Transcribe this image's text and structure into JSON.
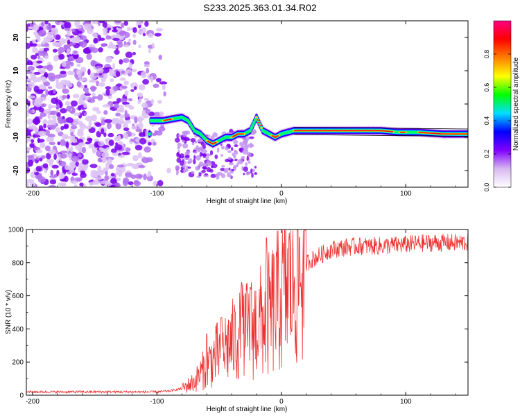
{
  "title": "S233.2025.363.01.34.R02",
  "chart_data": [
    {
      "type": "heatmap",
      "name": "spectrogram",
      "xlabel": "Height of straight line (km)",
      "ylabel": "Frequency (Hz)",
      "xlim": [
        -205,
        150
      ],
      "ylim": [
        -25,
        25
      ],
      "xticks": [
        -200,
        -100,
        0,
        100
      ],
      "yticks": [
        20,
        10,
        0,
        -10,
        -20
      ],
      "colorbar": {
        "label": "Normalized spectral amplitude",
        "range": [
          0.0,
          1.0
        ],
        "ticks": [
          "0.0",
          "0.2",
          "0.4",
          "0.6",
          "0.8"
        ],
        "colormap": [
          "#ffffff",
          "#d8b8f0",
          "#8000ff",
          "#0000ff",
          "#00e0ff",
          "#00ff00",
          "#ffff00",
          "#ff8000",
          "#ff0000",
          "#ff0080"
        ]
      },
      "ridge": {
        "x": [
          -105,
          -95,
          -88,
          -80,
          -75,
          -70,
          -65,
          -60,
          -55,
          -50,
          -45,
          -40,
          -35,
          -30,
          -25,
          -20,
          -15,
          -10,
          -5,
          0,
          10,
          20,
          40,
          60,
          80,
          95,
          110,
          130,
          150
        ],
        "y": [
          -5,
          -5,
          -4.5,
          -4,
          -5,
          -8,
          -9,
          -11,
          -12,
          -11,
          -10,
          -10,
          -9,
          -9,
          -8,
          -4,
          -8,
          -9,
          -10,
          -9,
          -8,
          -8,
          -8,
          -8,
          -8,
          -8.5,
          -8.5,
          -9,
          -9
        ]
      }
    },
    {
      "type": "line",
      "name": "snr",
      "xlabel": "Height of straight line (km)",
      "ylabel": "SNR (10 * v/v)",
      "xlim": [
        -205,
        150
      ],
      "ylim": [
        0,
        1000
      ],
      "xticks": [
        -200,
        -100,
        0,
        100
      ],
      "yticks": [
        0,
        200,
        400,
        600,
        800,
        1000
      ],
      "color": "#ee3030",
      "series_envelope": {
        "x": [
          -205,
          -150,
          -100,
          -90,
          -80,
          -70,
          -60,
          -50,
          -40,
          -30,
          -20,
          -10,
          0,
          10,
          20,
          30,
          40,
          60,
          80,
          100,
          120,
          150
        ],
        "y": [
          20,
          20,
          20,
          25,
          40,
          80,
          180,
          260,
          320,
          380,
          420,
          480,
          600,
          720,
          800,
          840,
          880,
          900,
          900,
          910,
          920,
          920
        ]
      },
      "spikes": [
        {
          "x": -60,
          "y": 370
        },
        {
          "x": -48,
          "y": 470
        },
        {
          "x": -32,
          "y": 680
        },
        {
          "x": -25,
          "y": 650
        },
        {
          "x": -12,
          "y": 950
        }
      ]
    }
  ]
}
